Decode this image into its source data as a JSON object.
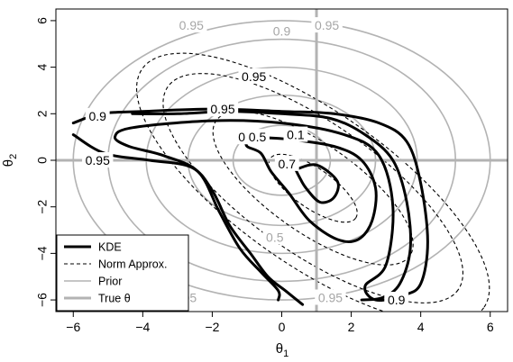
{
  "chart_data": {
    "type": "contour",
    "xlabel": "θ",
    "xlabel_sub": "1",
    "ylabel": "θ",
    "ylabel_sub": "2",
    "xlim": [
      -6.5,
      6.5
    ],
    "ylim": [
      -6.5,
      6.5
    ],
    "xticks": [
      -6,
      -4,
      -2,
      0,
      2,
      4,
      6
    ],
    "yticks": [
      -6,
      -4,
      -2,
      0,
      2,
      4,
      6
    ],
    "true_theta": [
      1,
      0
    ],
    "legend": {
      "position": "bottom-left",
      "entries": [
        {
          "label": "KDE",
          "style": "thick-solid",
          "color": "#000000"
        },
        {
          "label": "Norm Approx.",
          "style": "dashed",
          "color": "#000000"
        },
        {
          "label": "Prior",
          "style": "thin-solid",
          "color": "#b3b3b3"
        },
        {
          "label": "True  θ",
          "style": "thick-solid",
          "color": "#b3b3b3"
        }
      ]
    },
    "prior": {
      "center": [
        0,
        0
      ],
      "levels": [
        {
          "label": "0.95",
          "rx": 6.0,
          "ry": 6.0
        },
        {
          "label": "0.9",
          "rx": 5.0,
          "ry": 5.2
        },
        {
          "label": "",
          "rx": 3.9,
          "ry": 4.0
        },
        {
          "label": "",
          "rx": 2.7,
          "ry": 2.8
        },
        {
          "label": "",
          "rx": 1.4,
          "ry": 1.5
        }
      ],
      "labels": [
        {
          "text": "0.95",
          "x": -2.6,
          "y": 5.8
        },
        {
          "text": "0.95",
          "x": 1.3,
          "y": 5.8
        },
        {
          "text": "0.9",
          "x": 0.0,
          "y": 5.55
        },
        {
          "text": "0.95",
          "x": -2.8,
          "y": -5.9
        },
        {
          "text": "0.95",
          "x": 1.4,
          "y": -5.9
        },
        {
          "text": "0.5",
          "x": -0.2,
          "y": -3.3
        }
      ]
    },
    "norm_approx": {
      "center": [
        0.9,
        -1.2
      ],
      "angle_deg": -35,
      "levels": [
        {
          "label": "0.95",
          "rx": 6.0,
          "ry": 3.3
        },
        {
          "label": "",
          "rx": 5.1,
          "ry": 2.8
        },
        {
          "label": "",
          "rx": 3.4,
          "ry": 1.9
        },
        {
          "label": "",
          "rx": 1.5,
          "ry": 0.85
        }
      ],
      "labels": [
        {
          "text": "0.95",
          "x": -0.8,
          "y": 3.6
        },
        {
          "text": "0.5",
          "x": -1.0,
          "y": 1.0
        }
      ]
    },
    "kde": {
      "contours": [
        {
          "label": "0.95",
          "points": [
            [
              -6,
              1.6
            ],
            [
              -5.2,
              2.0
            ],
            [
              -4,
              2.1
            ],
            [
              -2,
              2.2
            ],
            [
              0,
              2.1
            ],
            [
              1.5,
              2.0
            ],
            [
              2.8,
              1.6
            ],
            [
              3.6,
              0.8
            ],
            [
              4.0,
              -1.0
            ],
            [
              4.2,
              -3.5
            ],
            [
              4.0,
              -5.3
            ],
            [
              3.5,
              -5.8
            ],
            [
              2.7,
              -6.0
            ],
            [
              2.4,
              -5.4
            ],
            [
              3.0,
              -4.5
            ],
            [
              3.2,
              -2.0
            ],
            [
              2.8,
              0.2
            ],
            [
              1.8,
              1.1
            ],
            [
              0,
              1.6
            ],
            [
              -2,
              1.7
            ],
            [
              -4.3,
              1.4
            ],
            [
              -4.8,
              1.0
            ],
            [
              -4.4,
              0.6
            ],
            [
              -3.4,
              0.2
            ],
            [
              -2.4,
              -0.5
            ],
            [
              -1.8,
              -2.2
            ],
            [
              -1.2,
              -3.8
            ],
            [
              -0.6,
              -4.8
            ],
            [
              -0.1,
              -5.6
            ],
            [
              -0.1,
              -6.0
            ]
          ]
        },
        {
          "label": "0.9",
          "points": [
            [
              -6,
              1.1
            ],
            [
              -5.1,
              0.3
            ],
            [
              -3.8,
              0.0
            ],
            [
              -2.6,
              -0.3
            ],
            [
              -2.0,
              -1.3
            ],
            [
              -1.5,
              -2.8
            ],
            [
              -0.9,
              -4.0
            ],
            [
              -0.4,
              -5.0
            ],
            [
              0.1,
              -5.6
            ],
            [
              0.6,
              -6.2
            ]
          ]
        },
        {
          "label": "0.9",
          "points": [
            [
              -4.3,
              2.0
            ],
            [
              -3,
              2.0
            ],
            [
              -1.5,
              2.1
            ],
            [
              0,
              2.0
            ],
            [
              1.4,
              1.8
            ],
            [
              2.4,
              1.1
            ],
            [
              3.2,
              0
            ],
            [
              3.6,
              -1.8
            ],
            [
              3.7,
              -3.8
            ],
            [
              3.4,
              -5.3
            ],
            [
              2.9,
              -5.9
            ],
            [
              2.3,
              -6.0
            ]
          ]
        },
        {
          "label": "0.5",
          "points": [
            [
              -0.9,
              1.0
            ],
            [
              0.2,
              0.9
            ],
            [
              1.5,
              0.6
            ],
            [
              2.3,
              0
            ],
            [
              2.7,
              -1.2
            ],
            [
              2.6,
              -2.6
            ],
            [
              2.2,
              -3.4
            ],
            [
              1.6,
              -3.4
            ],
            [
              0.8,
              -2.6
            ],
            [
              0.2,
              -1.4
            ],
            [
              -0.3,
              -0.5
            ],
            [
              -0.6,
              0.3
            ],
            [
              -1.0,
              0.6
            ],
            [
              -1.0,
              0.9
            ]
          ]
        },
        {
          "label": "0.1",
          "points": [
            [
              0.4,
              -0.4
            ],
            [
              1.0,
              -0.2
            ],
            [
              1.6,
              -0.9
            ],
            [
              1.5,
              -1.6
            ],
            [
              1.1,
              -1.8
            ],
            [
              0.7,
              -1.2
            ],
            [
              0.5,
              -0.7
            ],
            [
              0.4,
              -0.4
            ]
          ]
        }
      ],
      "labels": [
        {
          "text": "0.9",
          "x": -5.3,
          "y": 1.9
        },
        {
          "text": "0.95",
          "x": -1.7,
          "y": 2.2
        },
        {
          "text": "0.95",
          "x": -5.3,
          "y": 0.0
        },
        {
          "text": "0.5",
          "x": -0.7,
          "y": 1.0
        },
        {
          "text": "0.1",
          "x": 0.4,
          "y": 1.1
        },
        {
          "text": "0.7",
          "x": 0.15,
          "y": -0.15
        },
        {
          "text": "0.9",
          "x": 3.3,
          "y": -6.0
        }
      ]
    }
  }
}
